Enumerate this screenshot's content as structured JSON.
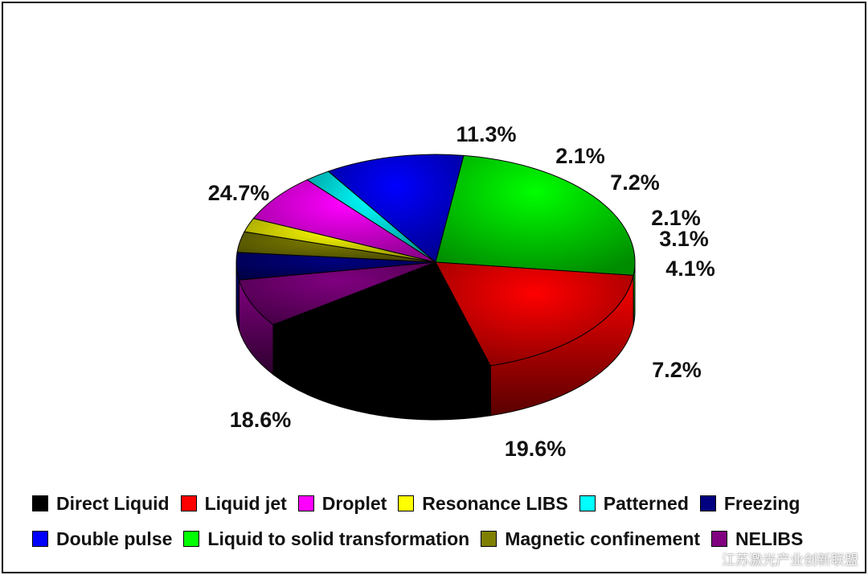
{
  "chart_data": {
    "type": "pie",
    "style": "3d",
    "title": "",
    "legend_position": "bottom",
    "slices": [
      {
        "label": "Direct Liquid",
        "value": 19.6,
        "value_label": "19.6%",
        "color": "#000000"
      },
      {
        "label": "NELIBS",
        "value": 7.2,
        "value_label": "7.2%",
        "color": "#800080"
      },
      {
        "label": "Freezing",
        "value": 4.1,
        "value_label": "4.1%",
        "color": "#000080"
      },
      {
        "label": "Magnetic confinement",
        "value": 3.1,
        "value_label": "3.1%",
        "color": "#808000"
      },
      {
        "label": "Resonance LIBS",
        "value": 2.1,
        "value_label": "2.1%",
        "color": "#ffff00"
      },
      {
        "label": "Droplet",
        "value": 7.2,
        "value_label": "7.2%",
        "color": "#ff00ff"
      },
      {
        "label": "Patterned",
        "value": 2.1,
        "value_label": "2.1%",
        "color": "#00ffff"
      },
      {
        "label": "Double pulse",
        "value": 11.3,
        "value_label": "11.3%",
        "color": "#0000ff"
      },
      {
        "label": "Liquid to solid transformation",
        "value": 24.7,
        "value_label": "24.7%",
        "color": "#00ff00"
      },
      {
        "label": "Liquid jet",
        "value": 18.6,
        "value_label": "18.6%",
        "color": "#ff0000"
      }
    ]
  },
  "legend": {
    "rows": [
      [
        {
          "label": "Direct Liquid",
          "color": "#000000"
        },
        {
          "label": "Liquid jet",
          "color": "#ff0000"
        },
        {
          "label": "Droplet",
          "color": "#ff00ff"
        },
        {
          "label": "Resonance LIBS",
          "color": "#ffff00"
        },
        {
          "label": "Patterned",
          "color": "#00ffff"
        },
        {
          "label": "Freezing",
          "color": "#000080"
        }
      ],
      [
        {
          "label": "Double pulse",
          "color": "#0000ff"
        },
        {
          "label": "Liquid to solid transformation",
          "color": "#00ff00"
        },
        {
          "label": "Magnetic confinement",
          "color": "#808000"
        },
        {
          "label": "NELIBS",
          "color": "#800080"
        }
      ]
    ]
  },
  "watermark": "江苏激光产业创新联盟"
}
